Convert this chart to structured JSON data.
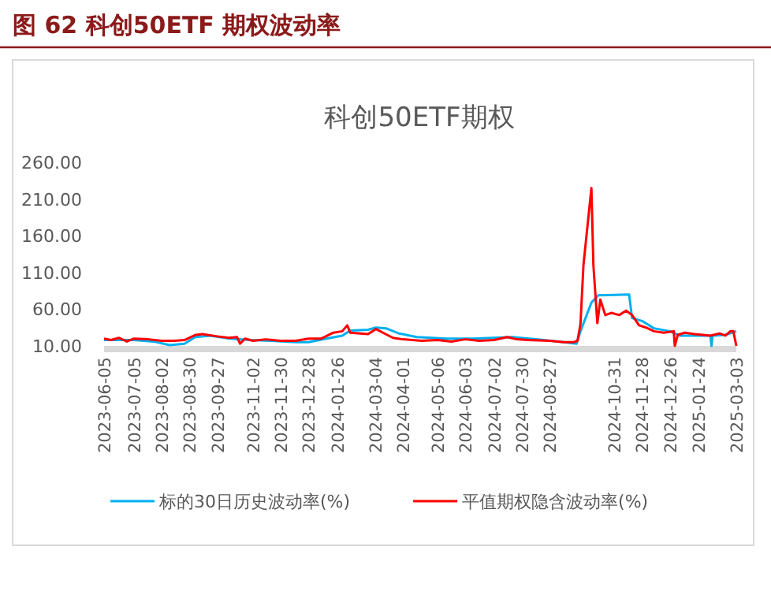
{
  "chart_data": {
    "type": "line",
    "title": "图 62 科创50ETF 期权波动率",
    "subtitle": "科创50ETF期权",
    "xlim": [
      "2023-06-05",
      "2025-03-03"
    ],
    "ylim": [
      10,
      260
    ],
    "xticks": [
      "2023-06-05",
      "2023-07-05",
      "2023-08-02",
      "2023-08-30",
      "2023-09-27",
      "2023-11-02",
      "2023-11-30",
      "2023-12-28",
      "2024-01-26",
      "2024-03-04",
      "2024-04-01",
      "2024-05-06",
      "2024-06-03",
      "2024-07-02",
      "2024-07-30",
      "2024-08-27",
      "2024-10-31",
      "2024-11-28",
      "2024-12-26",
      "2025-01-24",
      "2025-03-03"
    ],
    "yticks": [
      {
        "value": 10,
        "label": "10.00"
      },
      {
        "value": 60,
        "label": "60.00"
      },
      {
        "value": 110,
        "label": "110.00"
      },
      {
        "value": 160,
        "label": "160.00"
      },
      {
        "value": 210,
        "label": "210.00"
      },
      {
        "value": 260,
        "label": "260.00"
      }
    ],
    "legend": "bottom",
    "series": [
      {
        "name": "标的30日历史波动率(%)",
        "color": "#00b0f0",
        "x": [
          "2023-06-05",
          "2023-07-05",
          "2023-07-25",
          "2023-08-10",
          "2023-08-25",
          "2023-09-05",
          "2023-09-20",
          "2023-10-10",
          "2023-10-30",
          "2023-11-20",
          "2023-12-15",
          "2023-12-28",
          "2024-01-15",
          "2024-01-31",
          "2024-02-08",
          "2024-02-26",
          "2024-03-05",
          "2024-03-15",
          "2024-03-28",
          "2024-04-15",
          "2024-05-15",
          "2024-06-10",
          "2024-07-01",
          "2024-07-20",
          "2024-08-15",
          "2024-09-10",
          "2024-09-23",
          "2024-09-27",
          "2024-10-08",
          "2024-10-15",
          "2024-11-15",
          "2024-11-18",
          "2024-11-28",
          "2024-12-10",
          "2024-12-26",
          "2025-01-05",
          "2025-01-24",
          "2025-02-05",
          "2025-02-06",
          "2025-02-07",
          "2025-02-20",
          "2025-03-03"
        ],
        "values": [
          18,
          18,
          16,
          11,
          13,
          22,
          24,
          20,
          18,
          17,
          15,
          15,
          20,
          24,
          31,
          32,
          35,
          34,
          27,
          22,
          20,
          20,
          21,
          22,
          19,
          15,
          13,
          30,
          69,
          79,
          80,
          48,
          44,
          34,
          30,
          24,
          24,
          24,
          10,
          24,
          25,
          30
        ]
      },
      {
        "name": "平值期权隐含波动率(%)",
        "color": "#ff0000",
        "x": [
          "2023-06-05",
          "2023-06-12",
          "2023-06-20",
          "2023-06-28",
          "2023-07-05",
          "2023-07-20",
          "2023-08-02",
          "2023-08-15",
          "2023-08-25",
          "2023-09-05",
          "2023-09-12",
          "2023-09-27",
          "2023-10-09",
          "2023-10-17",
          "2023-10-20",
          "2023-10-25",
          "2023-11-02",
          "2023-11-15",
          "2023-11-30",
          "2023-12-15",
          "2023-12-28",
          "2024-01-10",
          "2024-01-22",
          "2024-01-31",
          "2024-02-05",
          "2024-02-08",
          "2024-02-26",
          "2024-03-05",
          "2024-03-12",
          "2024-03-22",
          "2024-04-01",
          "2024-04-20",
          "2024-05-06",
          "2024-05-20",
          "2024-06-03",
          "2024-06-17",
          "2024-07-02",
          "2024-07-15",
          "2024-07-25",
          "2024-08-05",
          "2024-08-27",
          "2024-09-10",
          "2024-09-20",
          "2024-09-24",
          "2024-09-27",
          "2024-09-30",
          "2024-10-08",
          "2024-10-10",
          "2024-10-14",
          "2024-10-17",
          "2024-10-22",
          "2024-10-28",
          "2024-11-05",
          "2024-11-12",
          "2024-11-18",
          "2024-11-25",
          "2024-12-02",
          "2024-12-10",
          "2024-12-20",
          "2024-12-30",
          "2024-12-31",
          "2025-01-03",
          "2025-01-10",
          "2025-01-20",
          "2025-02-05",
          "2025-02-14",
          "2025-02-20",
          "2025-02-25",
          "2025-02-28",
          "2025-03-03"
        ],
        "values": [
          20,
          18,
          21,
          16,
          20,
          19,
          17,
          17,
          18,
          25,
          26,
          23,
          21,
          22,
          13,
          20,
          17,
          19,
          17,
          17,
          20,
          20,
          28,
          30,
          38,
          28,
          26,
          33,
          28,
          21,
          19,
          17,
          18,
          16,
          19,
          17,
          18,
          22,
          19,
          18,
          17,
          15,
          15,
          17,
          40,
          120,
          225,
          120,
          41,
          73,
          52,
          55,
          52,
          58,
          52,
          38,
          35,
          30,
          28,
          30,
          10,
          25,
          28,
          26,
          24,
          27,
          24,
          30,
          30,
          10
        ]
      }
    ]
  }
}
